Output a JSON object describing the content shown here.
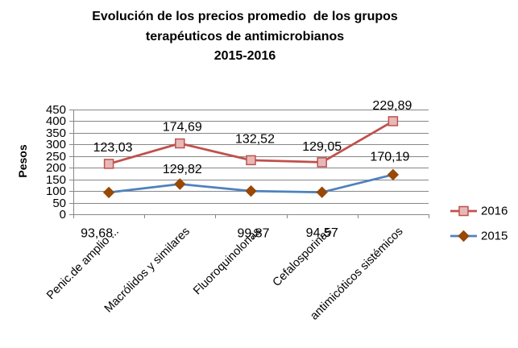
{
  "chart_data": {
    "type": "line",
    "stacked": true,
    "title": [
      "Evolución de los precios promedio  de los grupos",
      "terapéuticos de antimicrobianos",
      "2015-2016"
    ],
    "ylabel": "Pesos",
    "ylim": [
      0,
      450
    ],
    "yticks": [
      0,
      50,
      100,
      150,
      200,
      250,
      300,
      350,
      400,
      450
    ],
    "grid": true,
    "legend": "right",
    "categories": [
      "Penic.de amplio ...",
      "Macrólidos y similares",
      "Fluoroquinolonas",
      "Cefalosporinas",
      "antimicóticos sistémicos"
    ],
    "series": [
      {
        "name": "2015",
        "values": [
          93.68,
          129.82,
          99.87,
          94.57,
          170.19
        ],
        "data_labels": [
          "93,68",
          "129,82",
          "99,87",
          "94,57",
          "170,19"
        ],
        "color": "#4F81BD",
        "marker": "diamond",
        "marker_color": "#984807"
      },
      {
        "name": "2016",
        "values": [
          123.03,
          174.69,
          132.52,
          129.05,
          229.89
        ],
        "data_labels": [
          "123,03",
          "174,69",
          "132,52",
          "129,05",
          "229,89"
        ],
        "color": "#C0504D",
        "marker": "square",
        "marker_color": "#E6B9B8"
      }
    ]
  }
}
